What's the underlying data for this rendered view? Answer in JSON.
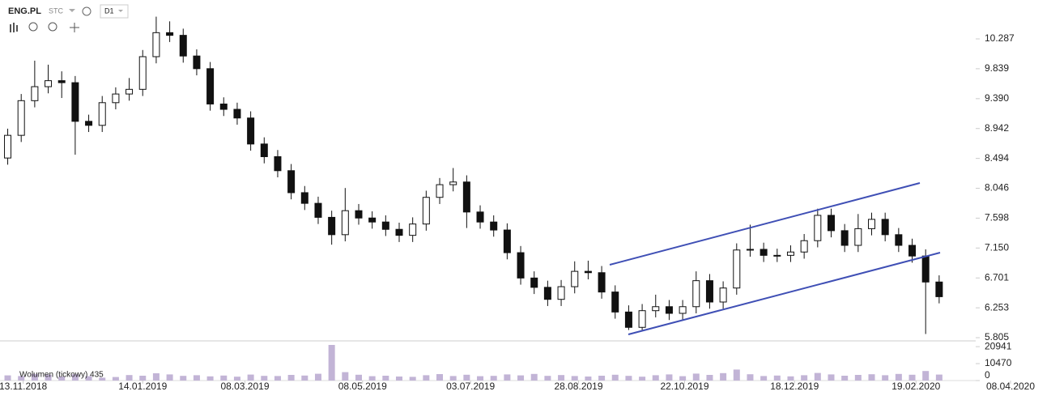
{
  "chart_data": {
    "type": "candlestick",
    "symbol": "ENG.PL",
    "price_mode": "STC",
    "interval": "D1",
    "volume_label": "Wolumen (tickowy) 435",
    "x": [
      "2018-11-05",
      "2018-11-12",
      "2018-11-19",
      "2018-11-26",
      "2018-12-03",
      "2018-12-10",
      "2018-12-17",
      "2018-12-24",
      "2018-12-31",
      "2019-01-07",
      "2019-01-14",
      "2019-01-21",
      "2019-01-28",
      "2019-02-04",
      "2019-02-11",
      "2019-02-18",
      "2019-02-25",
      "2019-03-04",
      "2019-03-11",
      "2019-03-18",
      "2019-03-25",
      "2019-04-01",
      "2019-04-08",
      "2019-04-15",
      "2019-04-22",
      "2019-04-29",
      "2019-05-06",
      "2019-05-13",
      "2019-05-20",
      "2019-05-27",
      "2019-06-03",
      "2019-06-10",
      "2019-06-17",
      "2019-06-24",
      "2019-07-01",
      "2019-07-08",
      "2019-07-15",
      "2019-07-22",
      "2019-07-29",
      "2019-08-05",
      "2019-08-12",
      "2019-08-19",
      "2019-08-26",
      "2019-09-02",
      "2019-09-09",
      "2019-09-16",
      "2019-09-23",
      "2019-09-30",
      "2019-10-07",
      "2019-10-14",
      "2019-10-21",
      "2019-10-28",
      "2019-11-04",
      "2019-11-11",
      "2019-11-18",
      "2019-11-25",
      "2019-12-02",
      "2019-12-09",
      "2019-12-16",
      "2019-12-23",
      "2019-12-30",
      "2020-01-06",
      "2020-01-13",
      "2020-01-20",
      "2020-01-27",
      "2020-02-03",
      "2020-02-10",
      "2020-02-17",
      "2020-02-24",
      "2020-03-02"
    ],
    "open": [
      8.5,
      8.84,
      9.36,
      9.57,
      9.66,
      9.63,
      9.05,
      8.99,
      9.33,
      9.46,
      9.53,
      10.02,
      10.38,
      10.34,
      10.03,
      9.84,
      9.31,
      9.23,
      9.1,
      8.71,
      8.52,
      8.31,
      7.98,
      7.82,
      7.61,
      7.35,
      7.71,
      7.6,
      7.54,
      7.43,
      7.34,
      7.51,
      7.91,
      8.1,
      8.14,
      7.69,
      7.54,
      7.42,
      7.08,
      6.7,
      6.56,
      6.38,
      6.57,
      6.8,
      6.78,
      6.49,
      6.19,
      5.96,
      6.21,
      6.27,
      6.17,
      6.27,
      6.66,
      6.34,
      6.55,
      7.12,
      7.13,
      7.04,
      7.04,
      7.09,
      7.26,
      7.64,
      7.41,
      7.19,
      7.44,
      7.58,
      7.35,
      7.19,
      7.03,
      6.64
    ],
    "high": [
      8.94,
      9.46,
      9.96,
      9.9,
      9.8,
      9.73,
      9.15,
      9.43,
      9.56,
      9.7,
      10.12,
      10.62,
      10.55,
      10.44,
      10.13,
      9.94,
      9.41,
      9.33,
      9.2,
      8.81,
      8.62,
      8.41,
      8.08,
      7.92,
      7.71,
      8.05,
      7.81,
      7.7,
      7.64,
      7.53,
      7.61,
      8.01,
      8.2,
      8.35,
      8.24,
      7.79,
      7.64,
      7.52,
      7.18,
      6.8,
      6.66,
      6.67,
      6.95,
      6.96,
      6.88,
      6.59,
      6.29,
      6.31,
      6.45,
      6.37,
      6.37,
      6.8,
      6.76,
      6.65,
      7.22,
      7.5,
      7.23,
      7.14,
      7.19,
      7.36,
      7.74,
      7.74,
      7.51,
      7.66,
      7.68,
      7.68,
      7.45,
      7.29,
      7.13,
      6.74
    ],
    "low": [
      8.4,
      8.74,
      9.26,
      9.47,
      9.4,
      8.55,
      8.89,
      8.89,
      9.23,
      9.36,
      9.43,
      9.92,
      10.24,
      9.93,
      9.74,
      9.21,
      9.13,
      9.0,
      8.61,
      8.42,
      8.21,
      7.88,
      7.72,
      7.51,
      7.2,
      7.25,
      7.5,
      7.44,
      7.33,
      7.24,
      7.24,
      7.41,
      7.81,
      8.0,
      7.45,
      7.44,
      7.32,
      6.98,
      6.6,
      6.46,
      6.28,
      6.28,
      6.47,
      6.68,
      6.39,
      6.09,
      5.92,
      5.92,
      6.11,
      6.07,
      6.07,
      6.17,
      6.24,
      6.24,
      6.45,
      7.02,
      6.94,
      6.94,
      6.94,
      6.99,
      7.16,
      7.31,
      7.09,
      7.09,
      7.34,
      7.25,
      7.09,
      6.93,
      5.86,
      6.32
    ],
    "close": [
      8.84,
      9.36,
      9.57,
      9.66,
      9.63,
      9.05,
      8.99,
      9.33,
      9.46,
      9.53,
      10.02,
      10.38,
      10.34,
      10.03,
      9.84,
      9.31,
      9.23,
      9.1,
      8.71,
      8.52,
      8.31,
      7.98,
      7.82,
      7.61,
      7.35,
      7.71,
      7.6,
      7.54,
      7.43,
      7.34,
      7.51,
      7.91,
      8.1,
      8.14,
      7.69,
      7.54,
      7.42,
      7.08,
      6.7,
      6.56,
      6.38,
      6.57,
      6.8,
      6.78,
      6.49,
      6.19,
      5.96,
      6.21,
      6.27,
      6.17,
      6.27,
      6.66,
      6.34,
      6.55,
      7.12,
      7.13,
      7.04,
      7.04,
      7.09,
      7.26,
      7.64,
      7.41,
      7.19,
      7.44,
      7.58,
      7.35,
      7.19,
      7.03,
      6.64,
      6.42
    ],
    "volume": [
      3200,
      2800,
      4100,
      3600,
      2500,
      3900,
      2700,
      1800,
      2200,
      3400,
      3000,
      4500,
      3800,
      2900,
      3300,
      2600,
      3100,
      2400,
      3700,
      2900,
      2800,
      3500,
      3100,
      4200,
      22000,
      5200,
      3600,
      2700,
      3000,
      2500,
      2300,
      3300,
      4000,
      2800,
      3600,
      2700,
      2900,
      3800,
      3200,
      4100,
      2900,
      3400,
      2800,
      2500,
      3000,
      3600,
      2900,
      2400,
      3300,
      3800,
      2700,
      4300,
      3500,
      4600,
      6800,
      3900,
      2800,
      3100,
      2600,
      3300,
      4700,
      3800,
      3000,
      3500,
      3900,
      3300,
      4100,
      3600,
      5900,
      3700
    ],
    "up_color": "#ffffff",
    "down_color": "#111111",
    "wick_color": "#111111",
    "volume_color": "#c2b4d6",
    "xlim": [
      "2018-11-01",
      "2020-04-29"
    ],
    "xticks": [
      {
        "value": "2018-11-13",
        "label": "13.11.2018"
      },
      {
        "value": "2019-01-14",
        "label": "14.01.2019"
      },
      {
        "value": "2019-03-08",
        "label": "08.03.2019"
      },
      {
        "value": "2019-05-08",
        "label": "08.05.2019"
      },
      {
        "value": "2019-07-03",
        "label": "03.07.2019"
      },
      {
        "value": "2019-08-28",
        "label": "28.08.2019"
      },
      {
        "value": "2019-10-22",
        "label": "22.10.2019"
      },
      {
        "value": "2019-12-18",
        "label": "18.12.2019"
      },
      {
        "value": "2020-02-19",
        "label": "19.02.2020"
      },
      {
        "value": "2020-04-08",
        "label": "08.04.2020"
      }
    ],
    "ylim": [
      5.769,
      10.87
    ],
    "yticks": [
      10.287,
      9.839,
      {
        "value": 9.39,
        "label": "9.390"
      },
      8.942,
      8.494,
      8.046,
      7.598,
      {
        "value": 7.15,
        "label": "7.150"
      },
      6.701,
      6.253,
      5.805
    ],
    "volume_lim": [
      0,
      24000
    ],
    "volume_ticks": [
      20941,
      10470,
      0
    ]
  }
}
